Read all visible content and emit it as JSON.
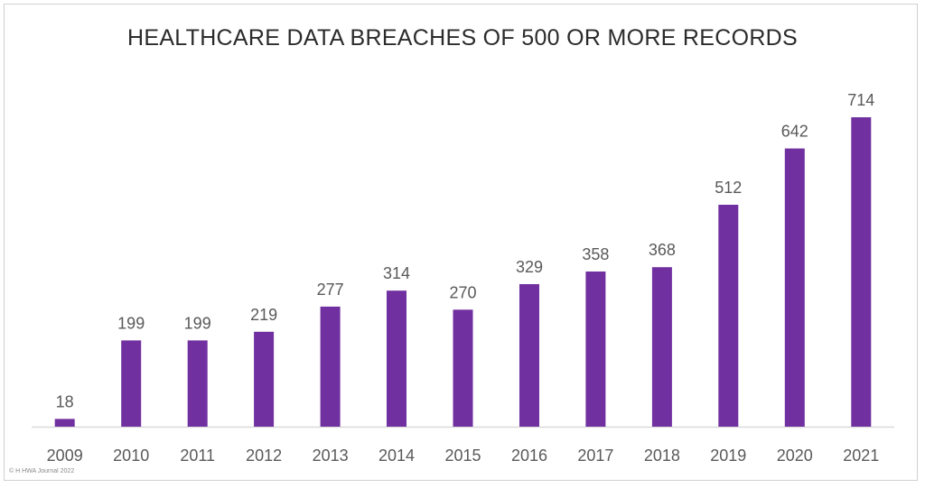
{
  "chart_data": {
    "type": "bar",
    "title": "HEALTHCARE DATA BREACHES OF 500 OR MORE RECORDS",
    "categories": [
      "2009",
      "2010",
      "2011",
      "2012",
      "2013",
      "2014",
      "2015",
      "2016",
      "2017",
      "2018",
      "2019",
      "2020",
      "2021"
    ],
    "values": [
      18,
      199,
      199,
      219,
      277,
      314,
      270,
      329,
      358,
      368,
      512,
      642,
      714
    ],
    "xlabel": "",
    "ylabel": "",
    "ylim": [
      0,
      714
    ],
    "grid": false,
    "legend": "none",
    "bar_color": "#7030a0",
    "label_color": "#595959",
    "axis_color": "#d9d9d9"
  },
  "footer": {
    "copyright": "© H HWA Journal 2022"
  }
}
